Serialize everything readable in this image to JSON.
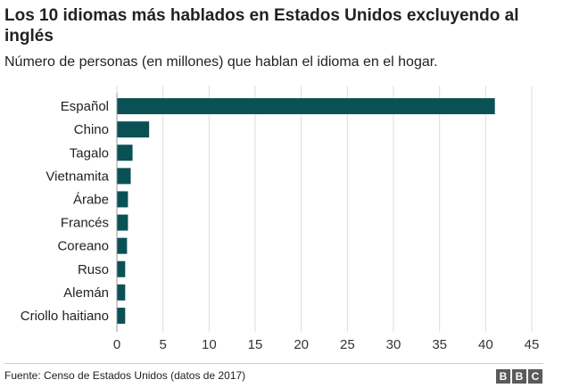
{
  "header": {
    "title": "Los 10 idiomas más hablados en Estados Unidos excluyendo al inglés",
    "subtitle": "Número de personas (en millones) que hablan el idioma en el hogar."
  },
  "chart_data": {
    "type": "bar",
    "orientation": "horizontal",
    "categories": [
      "Español",
      "Chino",
      "Tagalo",
      "Vietnamita",
      "Árabe",
      "Francés",
      "Coreano",
      "Ruso",
      "Alemán",
      "Criollo haitiano"
    ],
    "values": [
      41.0,
      3.5,
      1.7,
      1.5,
      1.2,
      1.2,
      1.1,
      0.9,
      0.9,
      0.9
    ],
    "xlim": [
      0,
      45
    ],
    "xticks": [
      0,
      5,
      10,
      15,
      20,
      25,
      30,
      35,
      40,
      45
    ],
    "grid": "vertical",
    "bar_color": "#0a5156",
    "grid_color": "#dddddd"
  },
  "footer": {
    "source": "Fuente: Censo de Estados Unidos (datos de 2017)",
    "logo_letters": [
      "B",
      "B",
      "C"
    ]
  }
}
